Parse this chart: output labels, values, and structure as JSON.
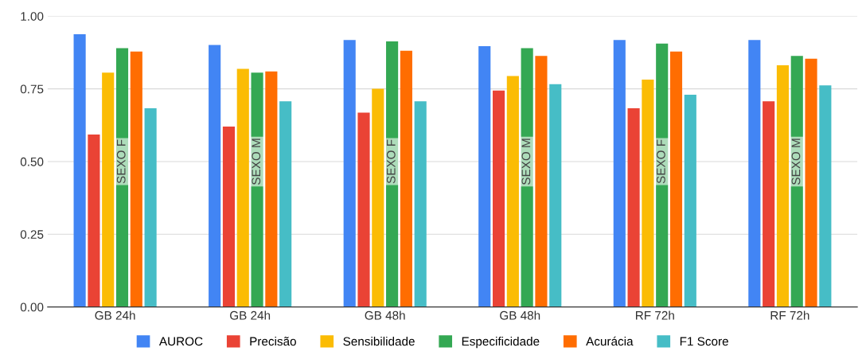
{
  "chart_data": {
    "type": "bar",
    "categories": [
      "GB 24h",
      "GB 24h",
      "GB 48h",
      "GB 48h",
      "RF 72h",
      "RF 72h"
    ],
    "series": [
      {
        "name": "AUROC",
        "color": "#4285f4",
        "values": [
          0.938,
          0.901,
          0.918,
          0.897,
          0.918,
          0.918
        ]
      },
      {
        "name": "Precisão",
        "color": "#ea4335",
        "values": [
          0.593,
          0.62,
          0.668,
          0.744,
          0.683,
          0.707
        ]
      },
      {
        "name": "Sensibilidade",
        "color": "#fbbc04",
        "values": [
          0.806,
          0.819,
          0.75,
          0.794,
          0.782,
          0.831
        ]
      },
      {
        "name": "Especificidade",
        "color": "#34a853",
        "values": [
          0.89,
          0.806,
          0.913,
          0.89,
          0.906,
          0.863
        ]
      },
      {
        "name": "Acurácia",
        "color": "#ff6d01",
        "values": [
          0.878,
          0.81,
          0.881,
          0.863,
          0.878,
          0.854
        ]
      },
      {
        "name": "F1 Score",
        "color": "#46bdc6",
        "values": [
          0.683,
          0.707,
          0.707,
          0.766,
          0.73,
          0.762
        ]
      }
    ],
    "annotations": [
      "SEXO F",
      "SEXO M",
      "SEXO F",
      "SEXO M",
      "SEXO F",
      "SEXO M"
    ],
    "ylim": [
      0,
      1
    ],
    "yticks": [
      {
        "value": 0,
        "label": "0.00"
      },
      {
        "value": 0.25,
        "label": "0.25"
      },
      {
        "value": 0.5,
        "label": "0.50"
      },
      {
        "value": 0.75,
        "label": "0.75"
      },
      {
        "value": 1,
        "label": "1.00"
      }
    ],
    "grid": "y",
    "legend": "bottom"
  }
}
